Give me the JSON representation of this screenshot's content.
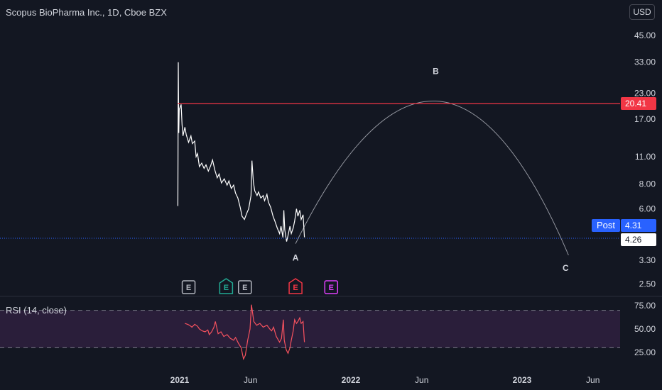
{
  "header": {
    "title": "Scopus BioPharma Inc., 1D, Cboe BZX",
    "currency": "USD"
  },
  "colors": {
    "background": "#131722",
    "price_line": "#ffffff",
    "resistance": "#f23645",
    "rsi_line": "#f7525f",
    "rsi_band": "#2a1e3a",
    "post_badge": "#2962ff",
    "arc": "#9598a1"
  },
  "chart_data": [
    {
      "type": "line",
      "title": "Scopus BioPharma Inc., 1D, Cboe BZX",
      "y_scale": "log",
      "ylim": [
        2.1,
        60
      ],
      "y_ticks": [
        "45.00",
        "33.00",
        "23.00",
        "17.00",
        "11.00",
        "8.00",
        "6.00",
        "3.30",
        "2.50"
      ],
      "x_ticks": [
        "2021",
        "Jun",
        "2022",
        "Jun",
        "2023",
        "Jun"
      ],
      "x_tick_dates": [
        "2021-01-01",
        "2021-06-01",
        "2022-01-01",
        "2022-06-01",
        "2023-01-01",
        "2023-06-01"
      ],
      "series": [
        {
          "points": [
            [
              "2020-12-28",
              6.2
            ],
            [
              "2020-12-29",
              33.0
            ],
            [
              "2020-12-30",
              14.5
            ],
            [
              "2020-12-31",
              19.0
            ],
            [
              "2021-01-04",
              20.2
            ],
            [
              "2021-01-06",
              16.0
            ],
            [
              "2021-01-08",
              14.0
            ],
            [
              "2021-01-12",
              15.5
            ],
            [
              "2021-01-15",
              14.2
            ],
            [
              "2021-01-20",
              13.0
            ],
            [
              "2021-01-25",
              14.0
            ],
            [
              "2021-01-28",
              12.8
            ],
            [
              "2021-02-02",
              13.2
            ],
            [
              "2021-02-05",
              11.0
            ],
            [
              "2021-02-08",
              11.4
            ],
            [
              "2021-02-12",
              9.8
            ],
            [
              "2021-02-17",
              10.2
            ],
            [
              "2021-02-22",
              9.6
            ],
            [
              "2021-02-26",
              10.0
            ],
            [
              "2021-03-03",
              9.3
            ],
            [
              "2021-03-08",
              9.9
            ],
            [
              "2021-03-12",
              10.6
            ],
            [
              "2021-03-17",
              9.4
            ],
            [
              "2021-03-22",
              8.6
            ],
            [
              "2021-03-26",
              9.0
            ],
            [
              "2021-03-31",
              8.1
            ],
            [
              "2021-04-06",
              8.5
            ],
            [
              "2021-04-12",
              7.9
            ],
            [
              "2021-04-16",
              8.3
            ],
            [
              "2021-04-21",
              7.6
            ],
            [
              "2021-04-26",
              7.9
            ],
            [
              "2021-04-30",
              7.2
            ],
            [
              "2021-05-05",
              6.8
            ],
            [
              "2021-05-10",
              6.1
            ],
            [
              "2021-05-14",
              5.5
            ],
            [
              "2021-05-19",
              5.3
            ],
            [
              "2021-05-24",
              5.7
            ],
            [
              "2021-05-28",
              6.0
            ],
            [
              "2021-06-02",
              7.0
            ],
            [
              "2021-06-04",
              10.5
            ],
            [
              "2021-06-07",
              8.2
            ],
            [
              "2021-06-10",
              7.4
            ],
            [
              "2021-06-15",
              7.0
            ],
            [
              "2021-06-18",
              7.3
            ],
            [
              "2021-06-23",
              6.8
            ],
            [
              "2021-06-28",
              7.0
            ],
            [
              "2021-07-01",
              6.6
            ],
            [
              "2021-07-06",
              7.1
            ],
            [
              "2021-07-09",
              6.5
            ],
            [
              "2021-07-14",
              6.1
            ],
            [
              "2021-07-19",
              5.5
            ],
            [
              "2021-07-23",
              5.2
            ],
            [
              "2021-07-28",
              4.8
            ],
            [
              "2021-08-02",
              4.5
            ],
            [
              "2021-08-05",
              4.9
            ],
            [
              "2021-08-09",
              4.3
            ],
            [
              "2021-08-11",
              5.9
            ],
            [
              "2021-08-13",
              4.7
            ],
            [
              "2021-08-17",
              4.1
            ],
            [
              "2021-08-20",
              4.4
            ],
            [
              "2021-08-24",
              4.9
            ],
            [
              "2021-08-27",
              4.5
            ],
            [
              "2021-08-31",
              4.8
            ],
            [
              "2021-09-03",
              5.2
            ],
            [
              "2021-09-07",
              6.0
            ],
            [
              "2021-09-10",
              5.5
            ],
            [
              "2021-09-14",
              5.9
            ],
            [
              "2021-09-17",
              5.3
            ],
            [
              "2021-09-21",
              5.6
            ],
            [
              "2021-09-24",
              4.31
            ]
          ]
        }
      ],
      "annotations": {
        "wave_labels": [
          "A",
          "B",
          "C"
        ],
        "resistance_value": 20.41,
        "post_label": "Post",
        "post_value": "4.31",
        "last_value": "4.26",
        "last_price": 4.26,
        "resistance_label": "20.41",
        "earnings_marks": [
          "E",
          "E",
          "E",
          "E",
          "E"
        ],
        "earnings_dates": [
          "2021-01-20",
          "2021-04-10",
          "2021-05-20",
          "2021-09-05",
          "2021-11-20"
        ],
        "earnings_colors": [
          "#b2b5be",
          "#22ab94",
          "#b2b5be",
          "#f23645",
          "#e040fb"
        ],
        "projection_arc": [
          [
            "2021-09-05",
            4.0
          ],
          [
            "2022-07-01",
            21.0
          ],
          [
            "2023-04-10",
            3.5
          ]
        ]
      }
    },
    {
      "type": "line",
      "title": "RSI (14, close)",
      "ylim": [
        0,
        100
      ],
      "y_ticks": [
        "75.00",
        "50.00",
        "25.00"
      ],
      "bands": [
        30,
        70
      ],
      "series": [
        {
          "name": "RSI (14, close)",
          "points": [
            [
              "2021-01-12",
              56
            ],
            [
              "2021-01-18",
              55
            ],
            [
              "2021-01-22",
              54
            ],
            [
              "2021-01-27",
              52
            ],
            [
              "2021-02-02",
              55
            ],
            [
              "2021-02-08",
              53
            ],
            [
              "2021-02-12",
              50
            ],
            [
              "2021-02-18",
              48
            ],
            [
              "2021-02-24",
              47
            ],
            [
              "2021-03-02",
              49
            ],
            [
              "2021-03-05",
              44
            ],
            [
              "2021-03-10",
              47
            ],
            [
              "2021-03-15",
              52
            ],
            [
              "2021-03-18",
              58
            ],
            [
              "2021-03-24",
              45
            ],
            [
              "2021-03-30",
              47
            ],
            [
              "2021-04-05",
              42
            ],
            [
              "2021-04-12",
              44
            ],
            [
              "2021-04-19",
              40
            ],
            [
              "2021-04-26",
              38
            ],
            [
              "2021-04-30",
              41
            ],
            [
              "2021-05-06",
              35
            ],
            [
              "2021-05-12",
              30
            ],
            [
              "2021-05-17",
              18
            ],
            [
              "2021-05-21",
              22
            ],
            [
              "2021-05-26",
              38
            ],
            [
              "2021-05-31",
              50
            ],
            [
              "2021-06-03",
              76
            ],
            [
              "2021-06-08",
              58
            ],
            [
              "2021-06-14",
              54
            ],
            [
              "2021-06-21",
              56
            ],
            [
              "2021-06-28",
              52
            ],
            [
              "2021-07-06",
              54
            ],
            [
              "2021-07-12",
              50
            ],
            [
              "2021-07-16",
              48
            ],
            [
              "2021-07-20",
              52
            ],
            [
              "2021-07-26",
              42
            ],
            [
              "2021-08-02",
              36
            ],
            [
              "2021-08-06",
              40
            ],
            [
              "2021-08-10",
              60
            ],
            [
              "2021-08-12",
              38
            ],
            [
              "2021-08-16",
              28
            ],
            [
              "2021-08-20",
              24
            ],
            [
              "2021-08-24",
              30
            ],
            [
              "2021-08-27",
              38
            ],
            [
              "2021-08-31",
              48
            ],
            [
              "2021-09-03",
              60
            ],
            [
              "2021-09-07",
              56
            ],
            [
              "2021-09-10",
              58
            ],
            [
              "2021-09-14",
              62
            ],
            [
              "2021-09-17",
              56
            ],
            [
              "2021-09-21",
              58
            ],
            [
              "2021-09-24",
              36
            ]
          ]
        }
      ]
    }
  ],
  "rsi": {
    "label": "RSI (14, close)"
  }
}
